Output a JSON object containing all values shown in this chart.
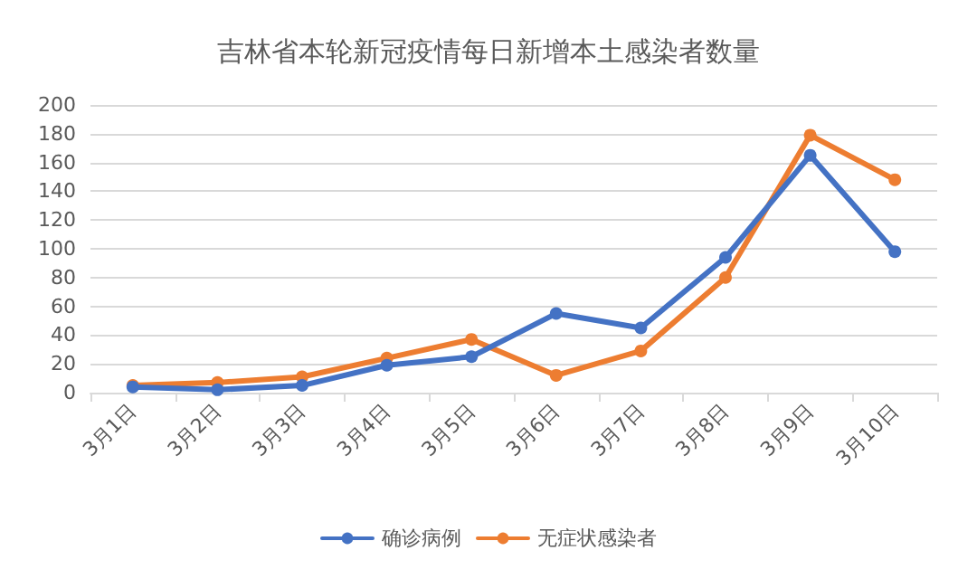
{
  "chart_data": {
    "type": "line",
    "title": "吉林省本轮新冠疫情每日新增本土感染者数量",
    "categories": [
      "3月1日",
      "3月2日",
      "3月3日",
      "3月4日",
      "3月5日",
      "3月6日",
      "3月7日",
      "3月8日",
      "3月9日",
      "3月10日"
    ],
    "series": [
      {
        "name": "确诊病例",
        "color": "#4472c4",
        "values": [
          4,
          2,
          5,
          19,
          25,
          55,
          45,
          94,
          165,
          98
        ]
      },
      {
        "name": "无症状感染者",
        "color": "#ed7d31",
        "values": [
          5,
          7,
          11,
          24,
          37,
          12,
          29,
          80,
          179,
          148
        ]
      }
    ],
    "ylim": [
      0,
      200
    ],
    "yticks": [
      0,
      20,
      40,
      60,
      80,
      100,
      120,
      140,
      160,
      180,
      200
    ],
    "grid": "y",
    "legend": "bottom",
    "marker": "circle",
    "line_style": "solid"
  }
}
